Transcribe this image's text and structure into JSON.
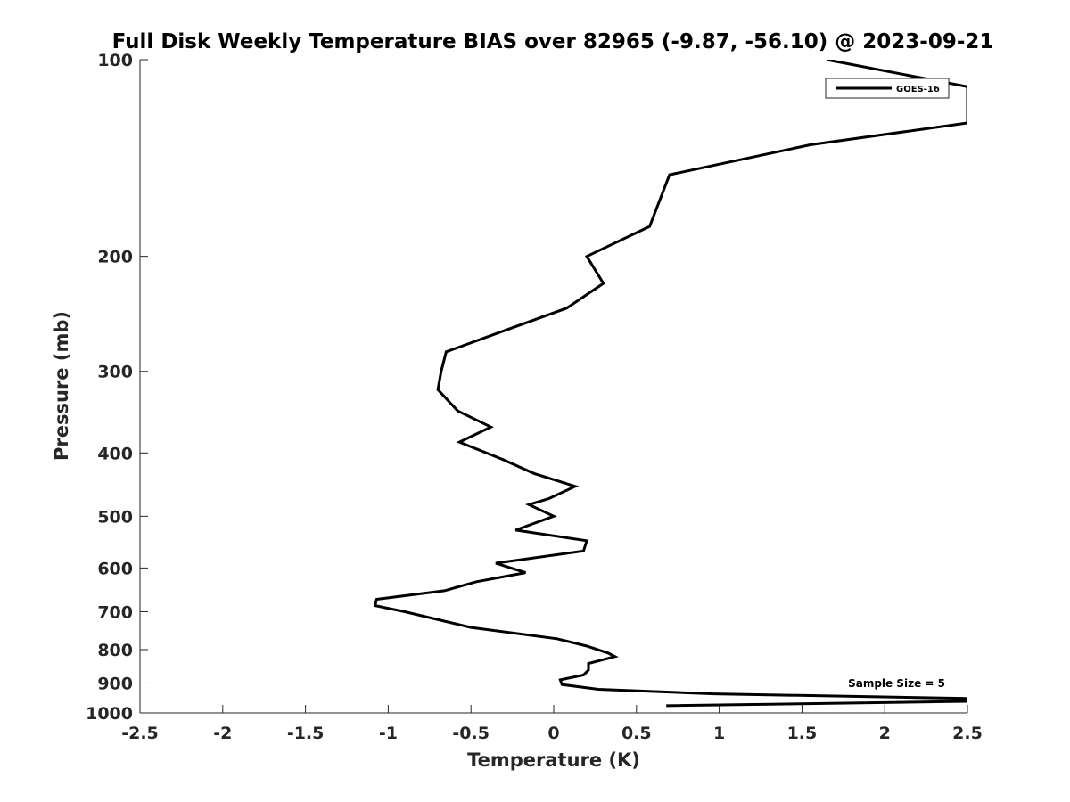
{
  "chart_data": {
    "type": "line",
    "title": "Full Disk Weekly Temperature BIAS over 82965 (-9.87, -56.10) @ 2023-09-21",
    "xlabel": "Temperature (K)",
    "ylabel": "Pressure (mb)",
    "xlim": [
      -2.5,
      2.5
    ],
    "ylim": [
      100,
      1000
    ],
    "y_scale": "log",
    "y_reversed": true,
    "x_ticks": [
      "-2.5",
      "-2",
      "-1.5",
      "-1",
      "-0.5",
      "0",
      "0.5",
      "1",
      "1.5",
      "2",
      "2.5"
    ],
    "y_ticks": [
      "100",
      "200",
      "300",
      "400",
      "500",
      "600",
      "700",
      "800",
      "900",
      "1000"
    ],
    "legend_position": "top-right",
    "annotation": "Sample Size = 5",
    "series": [
      {
        "name": "GOES-16",
        "color": "#000000",
        "points": [
          [
            1.65,
            100
          ],
          [
            2.5,
            110
          ],
          [
            2.5,
            125
          ],
          [
            1.55,
            135
          ],
          [
            0.7,
            150
          ],
          [
            0.58,
            180
          ],
          [
            0.2,
            200
          ],
          [
            0.3,
            220
          ],
          [
            0.08,
            240
          ],
          [
            -0.3,
            260
          ],
          [
            -0.65,
            280
          ],
          [
            -0.68,
            300
          ],
          [
            -0.7,
            320
          ],
          [
            -0.58,
            345
          ],
          [
            -0.38,
            365
          ],
          [
            -0.57,
            385
          ],
          [
            -0.3,
            410
          ],
          [
            -0.12,
            430
          ],
          [
            0.13,
            450
          ],
          [
            -0.03,
            470
          ],
          [
            -0.15,
            480
          ],
          [
            0.0,
            500
          ],
          [
            -0.23,
            525
          ],
          [
            0.2,
            545
          ],
          [
            0.18,
            565
          ],
          [
            -0.35,
            590
          ],
          [
            -0.17,
            610
          ],
          [
            -0.47,
            630
          ],
          [
            -0.66,
            650
          ],
          [
            -1.07,
            670
          ],
          [
            -1.08,
            685
          ],
          [
            -0.9,
            700
          ],
          [
            -0.5,
            740
          ],
          [
            0.02,
            770
          ],
          [
            0.2,
            790
          ],
          [
            0.33,
            810
          ],
          [
            0.37,
            820
          ],
          [
            0.21,
            840
          ],
          [
            0.21,
            860
          ],
          [
            0.18,
            875
          ],
          [
            0.04,
            890
          ],
          [
            0.05,
            905
          ],
          [
            0.27,
            920
          ],
          [
            0.97,
            935
          ],
          [
            2.5,
            950
          ],
          [
            2.5,
            960
          ],
          [
            0.68,
            975
          ]
        ]
      }
    ]
  }
}
